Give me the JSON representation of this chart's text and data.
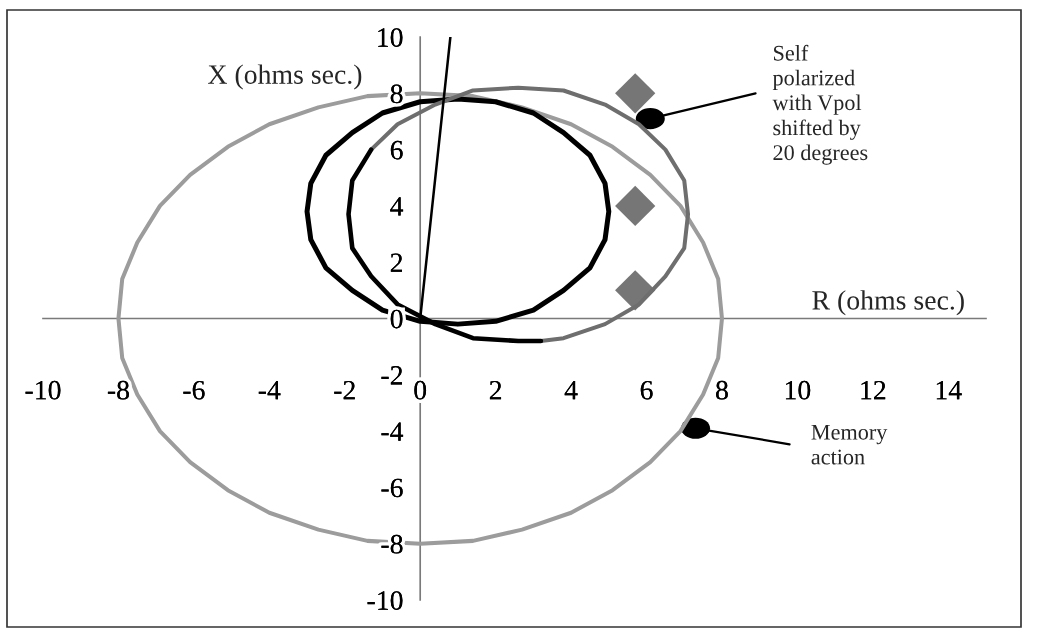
{
  "chart_data": {
    "type": "line",
    "xlabel": "R (ohms sec.)",
    "ylabel": "X (ohms sec.)",
    "xlim": [
      -10,
      15
    ],
    "xticks": [
      -10,
      -8,
      -6,
      -4,
      -2,
      0,
      2,
      4,
      6,
      8,
      10,
      12,
      14
    ],
    "ylim": [
      -10,
      10
    ],
    "yticks": [
      -10,
      -8,
      -6,
      -4,
      -2,
      0,
      2,
      4,
      6,
      8,
      10
    ],
    "line_style": "solid",
    "series": [
      {
        "color": "#9c9c9c",
        "x": [
          8,
          7.9,
          7.5,
          6.9,
          6.1,
          5.1,
          4,
          2.7,
          1.4,
          0,
          -1.4,
          -2.7,
          -4,
          -5.1,
          -6.1,
          -6.9,
          -7.5,
          -7.9,
          -8,
          -7.9,
          -7.5,
          -6.9,
          -6.1,
          -5.1,
          -4,
          -2.7,
          -1.4,
          0,
          1.4,
          2.7,
          4,
          5.1,
          6.1,
          6.9,
          7.5,
          7.9,
          8,
          7.9
        ],
        "values": [
          0,
          1.4,
          2.7,
          4,
          5.1,
          6.1,
          6.9,
          7.5,
          7.9,
          8,
          7.9,
          7.5,
          6.9,
          6.1,
          5.1,
          4,
          2.7,
          1.4,
          0,
          -1.4,
          -2.7,
          -4,
          -5.1,
          -6.1,
          -6.9,
          -7.5,
          -7.9,
          -8,
          -7.9,
          -7.5,
          -6.9,
          -6.1,
          -5.1,
          -4,
          -2.7,
          -1.4,
          0,
          1.4
        ]
      },
      {
        "color": "#000000",
        "x": [
          5,
          4.9,
          4.5,
          3.8,
          3,
          2,
          1,
          0,
          -1,
          -1.8,
          -2.5,
          -2.9,
          -3,
          -2.9,
          -2.5,
          -1.8,
          -1,
          0,
          1,
          2,
          3,
          3.8,
          4.5,
          4.9,
          5,
          4.9
        ],
        "values": [
          3.8,
          4.8,
          5.8,
          6.6,
          7.3,
          7.7,
          7.8,
          7.7,
          7.3,
          6.6,
          5.8,
          4.8,
          3.8,
          2.8,
          1.8,
          1,
          0.3,
          -0.1,
          -0.2,
          -0.1,
          0.3,
          1,
          1.8,
          2.8,
          3.8,
          4.8
        ]
      },
      {
        "color": "#6e6e6e",
        "x": [
          3.2,
          3.8,
          4.9,
          5.8,
          6.5,
          7,
          7.1,
          7,
          6.5,
          5.8,
          4.9,
          3.8,
          2.6,
          1.4,
          0.4,
          -0.6,
          -1.3
        ],
        "values": [
          -0.8,
          -0.7,
          -0.2,
          0.5,
          1.5,
          2.5,
          3.7,
          4.9,
          6,
          6.9,
          7.6,
          8.1,
          8.2,
          8.1,
          7.6,
          6.9,
          6
        ]
      },
      {
        "color": "#000000",
        "x": [
          -1.3,
          -1.8,
          -1.9,
          -1.8,
          -1.3,
          -0.6,
          0.4,
          1.4,
          2.6,
          3.2
        ],
        "values": [
          6,
          4.9,
          3.7,
          2.5,
          1.5,
          0.5,
          -0.2,
          -0.7,
          -0.8,
          -0.8
        ]
      },
      {
        "color": "#000000",
        "x": [
          0,
          0.8
        ],
        "values": [
          0,
          10
        ]
      },
      {
        "type": "scatter",
        "color": "#767676",
        "marker": "diamond",
        "x": [
          5.7,
          5.7,
          5.7
        ],
        "values": [
          8,
          4,
          1
        ]
      }
    ],
    "annotations": [
      {
        "text": "Self\npolarized\nwith Vpol\nshifted by\n20 degrees",
        "x": 6.1,
        "y": 7.1
      },
      {
        "text": "Memory\naction",
        "x": 7.3,
        "y": -3.9
      }
    ]
  }
}
